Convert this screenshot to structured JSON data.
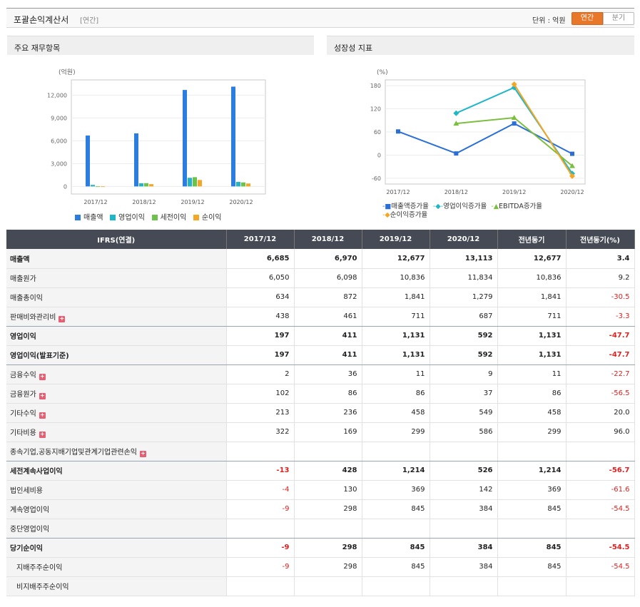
{
  "header": {
    "title": "포괄손익계산서",
    "subtitle": "[연간]",
    "unit_label": "단위 : 억원",
    "seg_annual": "연간",
    "seg_quarter": "분기"
  },
  "left_panel": {
    "title": "주요 재무항목"
  },
  "right_panel": {
    "title": "성장성 지표"
  },
  "chart_data": [
    {
      "type": "bar",
      "ylabel": "(억원)",
      "categories": [
        "2017/12",
        "2018/12",
        "2019/12",
        "2020/12"
      ],
      "ylim": [
        -1000,
        14000
      ],
      "yticks": [
        "0",
        "3,000",
        "6,000",
        "9,000",
        "12,000"
      ],
      "series": [
        {
          "name": "매출액",
          "color": "#2b7de0",
          "values": [
            6685,
            6970,
            12677,
            13113
          ]
        },
        {
          "name": "영업이익",
          "color": "#1fb6c7",
          "values": [
            197,
            411,
            1131,
            592
          ]
        },
        {
          "name": "세전이익",
          "color": "#6cc24a",
          "values": [
            -13,
            428,
            1214,
            526
          ]
        },
        {
          "name": "순이익",
          "color": "#f5a623",
          "values": [
            -9,
            298,
            845,
            384
          ]
        }
      ]
    },
    {
      "type": "line",
      "ylabel": "(%)",
      "categories": [
        "2017/12",
        "2018/12",
        "2019/12",
        "2020/12"
      ],
      "ylim": [
        -75,
        195
      ],
      "yticks": [
        "-60",
        "0",
        "60",
        "120",
        "180"
      ],
      "series": [
        {
          "name": "매출액증가율",
          "color": "#2b6fd6",
          "marker": "square",
          "values": [
            61.3,
            4.3,
            81.9,
            3.4
          ]
        },
        {
          "name": "영업이익증가율",
          "color": "#1fb6c7",
          "marker": "diamond",
          "values": [
            null,
            108.6,
            175.2,
            -47.7
          ]
        },
        {
          "name": "EBITDA증가율",
          "color": "#7cbf3f",
          "marker": "triangle",
          "values": [
            null,
            82.0,
            97.0,
            -28.0
          ]
        },
        {
          "name": "순이익증가율",
          "color": "#f5a623",
          "marker": "diamond",
          "values": [
            null,
            null,
            183.6,
            -54.5
          ]
        }
      ]
    }
  ],
  "table": {
    "headers": [
      "IFRS(연결)",
      "2017/12",
      "2018/12",
      "2019/12",
      "2020/12",
      "전년동기",
      "전년동기(%)"
    ],
    "rows": [
      {
        "label": "매출액",
        "values": [
          "6,685",
          "6,970",
          "12,677",
          "13,113",
          "12,677",
          "3.4"
        ]
      },
      {
        "label": "매출원가",
        "values": [
          "6,050",
          "6,098",
          "10,836",
          "11,834",
          "10,836",
          "9.2"
        ]
      },
      {
        "label": "매출총이익",
        "values": [
          "634",
          "872",
          "1,841",
          "1,279",
          "1,841",
          "-30.5"
        ]
      },
      {
        "label": "판매비와관리비",
        "values": [
          "438",
          "461",
          "711",
          "687",
          "711",
          "-3.3"
        ]
      },
      {
        "label": "영업이익",
        "values": [
          "197",
          "411",
          "1,131",
          "592",
          "1,131",
          "-47.7"
        ]
      },
      {
        "label": "영업이익(발표기준)",
        "values": [
          "197",
          "411",
          "1,131",
          "592",
          "1,131",
          "-47.7"
        ]
      },
      {
        "label": "금융수익",
        "values": [
          "2",
          "36",
          "11",
          "9",
          "11",
          "-22.7"
        ]
      },
      {
        "label": "금융원가",
        "values": [
          "102",
          "86",
          "86",
          "37",
          "86",
          "-56.5"
        ]
      },
      {
        "label": "기타수익",
        "values": [
          "213",
          "236",
          "458",
          "549",
          "458",
          "20.0"
        ]
      },
      {
        "label": "기타비용",
        "values": [
          "322",
          "169",
          "299",
          "586",
          "299",
          "96.0"
        ]
      },
      {
        "label": "종속기업,공동지배기업및관계기업관련손익",
        "values": [
          "",
          "",
          "",
          "",
          "",
          ""
        ]
      },
      {
        "label": "세전계속사업이익",
        "values": [
          "-13",
          "428",
          "1,214",
          "526",
          "1,214",
          "-56.7"
        ]
      },
      {
        "label": "법인세비용",
        "values": [
          "-4",
          "130",
          "369",
          "142",
          "369",
          "-61.6"
        ]
      },
      {
        "label": "계속영업이익",
        "values": [
          "-9",
          "298",
          "845",
          "384",
          "845",
          "-54.5"
        ]
      },
      {
        "label": "중단영업이익",
        "values": [
          "",
          "",
          "",
          "",
          "",
          ""
        ]
      },
      {
        "label": "당기순이익",
        "values": [
          "-9",
          "298",
          "845",
          "384",
          "845",
          "-54.5"
        ]
      },
      {
        "label": "지배주주순이익",
        "values": [
          "-9",
          "298",
          "845",
          "384",
          "845",
          "-54.5"
        ]
      },
      {
        "label": "비지배주주순이익",
        "values": [
          "",
          "",
          "",
          "",
          "",
          ""
        ]
      }
    ]
  }
}
